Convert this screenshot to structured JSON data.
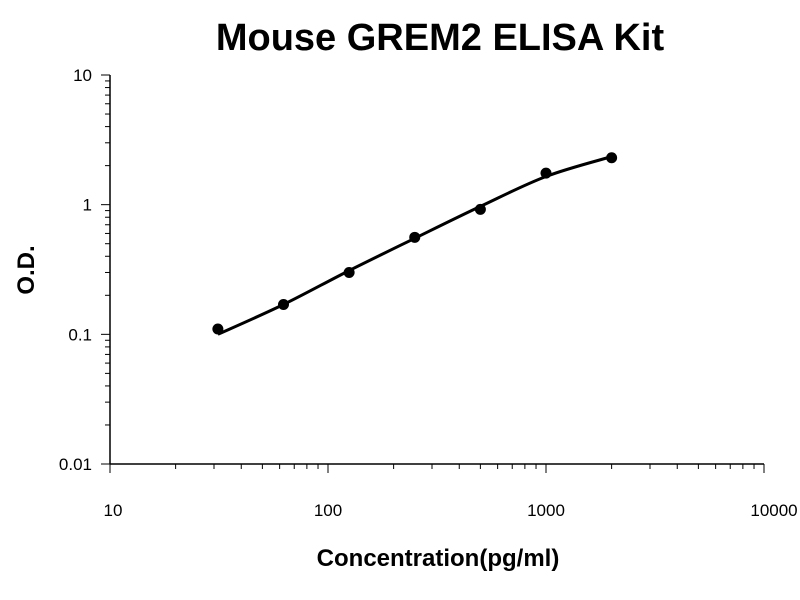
{
  "chart_data": {
    "type": "scatter",
    "title": "Mouse GREM2 ELISA Kit",
    "xlabel": "Concentration(pg/ml)",
    "ylabel": "O.D.",
    "x_scale": "log",
    "y_scale": "log",
    "xlim": [
      10,
      10000
    ],
    "ylim": [
      0.01,
      10
    ],
    "x_ticks": [
      "10",
      "100",
      "1000",
      "10000"
    ],
    "y_ticks": [
      "10",
      "1",
      "0.1",
      "0.01"
    ],
    "grid": false,
    "legend": "none",
    "series": [
      {
        "points": [
          {
            "x": 31.25,
            "y": 0.11
          },
          {
            "x": 62.5,
            "y": 0.17
          },
          {
            "x": 125,
            "y": 0.3
          },
          {
            "x": 250,
            "y": 0.56
          },
          {
            "x": 500,
            "y": 0.92
          },
          {
            "x": 1000,
            "y": 1.75
          },
          {
            "x": 2000,
            "y": 2.3
          }
        ],
        "fit_curve": [
          {
            "x": 31.25,
            "y": 0.1
          },
          {
            "x": 62.5,
            "y": 0.17
          },
          {
            "x": 125,
            "y": 0.31
          },
          {
            "x": 250,
            "y": 0.55
          },
          {
            "x": 500,
            "y": 0.97
          },
          {
            "x": 1000,
            "y": 1.65
          },
          {
            "x": 2000,
            "y": 2.35
          }
        ]
      }
    ],
    "colors": {
      "marker": "#000000",
      "line": "#000000",
      "axis": "#000000"
    }
  }
}
